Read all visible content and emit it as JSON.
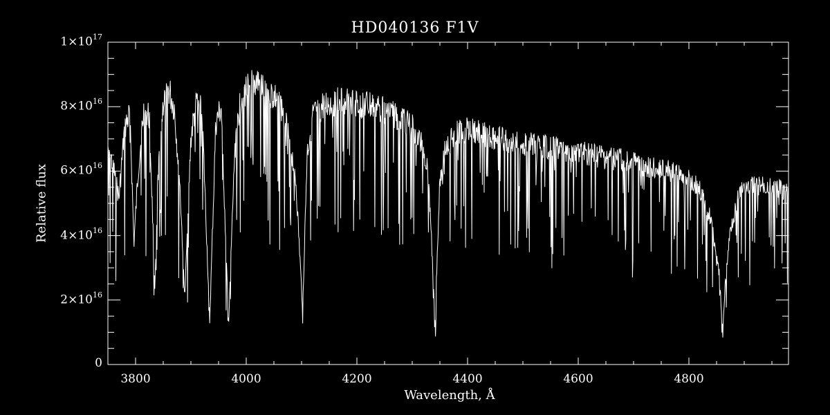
{
  "chart_data": {
    "type": "line",
    "title": "HD040136  F1V",
    "xlabel": "Wavelength, Å",
    "ylabel": "Relative flux",
    "xlim": [
      3750,
      4980
    ],
    "ylim": [
      0,
      1e+17
    ],
    "grid": false,
    "x_ticks": [
      {
        "value": 3800,
        "label": "3800"
      },
      {
        "value": 4000,
        "label": "4000"
      },
      {
        "value": 4200,
        "label": "4200"
      },
      {
        "value": 4400,
        "label": "4400"
      },
      {
        "value": 4600,
        "label": "4600"
      },
      {
        "value": 4800,
        "label": "4800"
      }
    ],
    "y_ticks": [
      {
        "value": 0,
        "mantissa": "0",
        "exponent": ""
      },
      {
        "value": 2e+16,
        "mantissa": "2×10",
        "exponent": "16"
      },
      {
        "value": 4e+16,
        "mantissa": "4×10",
        "exponent": "16"
      },
      {
        "value": 6e+16,
        "mantissa": "6×10",
        "exponent": "16"
      },
      {
        "value": 8e+16,
        "mantissa": "8×10",
        "exponent": "16"
      },
      {
        "value": 1e+17,
        "mantissa": "1×10",
        "exponent": "17"
      }
    ],
    "series": [
      {
        "x": [
          3750,
          3760,
          3770,
          3780,
          3790,
          3797,
          3805,
          3815,
          3825,
          3835,
          3840,
          3850,
          3860,
          3870,
          3880,
          3889,
          3900,
          3910,
          3920,
          3934,
          3945,
          3955,
          3968,
          3980,
          3990,
          4000,
          4010,
          4020,
          4030,
          4040,
          4050,
          4060,
          4070,
          4080,
          4090,
          4102,
          4110,
          4120,
          4140,
          4160,
          4180,
          4200,
          4220,
          4240,
          4260,
          4280,
          4300,
          4320,
          4330,
          4341,
          4350,
          4360,
          4380,
          4400,
          4420,
          4440,
          4460,
          4480,
          4500,
          4520,
          4540,
          4560,
          4580,
          4600,
          4620,
          4640,
          4660,
          4680,
          4700,
          4720,
          4740,
          4760,
          4780,
          4800,
          4820,
          4840,
          4855,
          4861,
          4866,
          4875,
          4890,
          4900,
          4920,
          4940,
          4960,
          4980
        ],
        "y": [
          7.2e+16,
          6.5e+16,
          5.5e+16,
          7.8e+16,
          8.3e+16,
          4e+16,
          6.5e+16,
          8.4e+16,
          8.2e+16,
          2.5e+16,
          6e+16,
          8.7e+16,
          9.1e+16,
          8.5e+16,
          6e+16,
          2.2e+16,
          7.5e+16,
          8.8e+16,
          8.5e+16,
          1.4e+16,
          8e+16,
          8.5e+16,
          1.3e+16,
          7.5e+16,
          8.8e+16,
          9.1e+16,
          9.3e+16,
          9.4e+16,
          9.2e+16,
          9e+16,
          8.9e+16,
          8.7e+16,
          8.2e+16,
          7.3e+16,
          6e+16,
          1.8e+16,
          7e+16,
          8.2e+16,
          8.6e+16,
          8.75e+16,
          8.7e+16,
          8.65e+16,
          8.6e+16,
          8.5e+16,
          8.35e+16,
          8.2e+16,
          7.9e+16,
          7.2e+16,
          6.3e+16,
          1.4e+16,
          6.2e+16,
          7.2e+16,
          7.7e+16,
          7.8e+16,
          7.7e+16,
          7.6e+16,
          7.5e+16,
          7.4e+16,
          7.35e+16,
          7.3e+16,
          7.25e+16,
          7.2e+16,
          7.1e+16,
          7.05e+16,
          7e+16,
          6.9e+16,
          6.85e+16,
          6.8e+16,
          6.7e+16,
          6.6e+16,
          6.5e+16,
          6.45e+16,
          6.35e+16,
          6.2e+16,
          5.8e+16,
          4.8e+16,
          3e+16,
          1.1e+16,
          2.8e+16,
          4.5e+16,
          5.6e+16,
          5.85e+16,
          5.95e+16,
          5.9e+16,
          5.85e+16,
          5.7e+16
        ]
      }
    ]
  }
}
